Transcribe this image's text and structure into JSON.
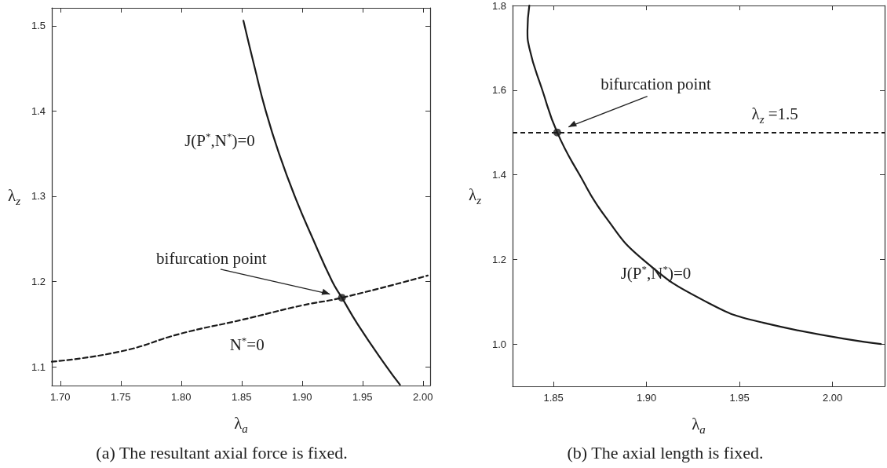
{
  "chart_data": [
    {
      "type": "line",
      "title": "(a) The resultant axial force is fixed.",
      "xlabel": "λ$_{a}$",
      "ylabel": "λ$_{z}$",
      "xlim": [
        1.693,
        2.006
      ],
      "ylim": [
        1.078,
        1.521
      ],
      "xticks": [
        {
          "value": 1.7,
          "label": "1.70"
        },
        1.75,
        {
          "value": 1.8,
          "label": "1.80"
        },
        1.85,
        {
          "value": 1.9,
          "label": "1.90"
        },
        1.95,
        {
          "value": 2,
          "label": "2.00"
        }
      ],
      "yticks": [
        1.1,
        1.2,
        1.3,
        1.4,
        1.5
      ],
      "grid": false,
      "series": [
        {
          "color": "#1a1a1a",
          "line_style": "solid",
          "x": [
            1.8515,
            1.861,
            1.87,
            1.881,
            1.894,
            1.909,
            1.925,
            1.933,
            1.946,
            1.97,
            1.981
          ],
          "values": [
            1.506,
            1.45,
            1.4,
            1.35,
            1.3,
            1.25,
            1.2,
            1.181,
            1.15,
            1.1,
            1.079
          ]
        },
        {
          "color": "#1a1a1a",
          "line_style": "dashed",
          "x": [
            1.693,
            1.75,
            1.8,
            1.85,
            1.9,
            1.933,
            2.004
          ],
          "values": [
            1.106,
            1.118,
            1.139,
            1.155,
            1.172,
            1.181,
            1.207
          ]
        },
        {
          "type": "scatter",
          "marker": "circle",
          "color": "#1a1a1a",
          "x": [
            1.933
          ],
          "values": [
            1.181
          ]
        }
      ],
      "annotations": [
        "bifurcation point",
        "J(P$^{*}$,N$^{*}$)=0",
        "N$^{*}$=0"
      ]
    },
    {
      "type": "line",
      "title": "(b) The axial length is fixed.",
      "xlabel": "λ$_{a}$",
      "ylabel": "λ$_{z}$",
      "xlim": [
        1.828,
        2.028
      ],
      "ylim": [
        0.9,
        1.8
      ],
      "xticks": [
        1.85,
        {
          "value": 1.9,
          "label": "1.90"
        },
        1.95,
        {
          "value": 2,
          "label": "2.00"
        }
      ],
      "yticks": [
        {
          "value": 1,
          "label": "1.0"
        },
        1.2,
        1.4,
        1.6,
        1.8
      ],
      "grid": false,
      "series": [
        {
          "color": "#1a1a1a",
          "line_style": "solid",
          "x": [
            1.837,
            1.836,
            1.837,
            1.844,
            1.852,
            1.864,
            1.878,
            1.898,
            1.932,
            1.963,
            2.026
          ],
          "values": [
            1.8,
            1.74,
            1.7,
            1.6,
            1.5,
            1.4,
            1.3,
            1.2,
            1.1,
            1.05,
            1.0
          ]
        },
        {
          "type": "scatter",
          "marker": "circle",
          "color": "#1a1a1a",
          "x": [
            1.852
          ],
          "values": [
            1.5
          ]
        }
      ],
      "ref_lines": [
        {
          "axis": "y",
          "value": 1.5,
          "label": "λ$_{z}$ =1.5",
          "line_style": "dashed",
          "color": "#1a1a1a"
        }
      ],
      "annotations": [
        "bifurcation point",
        "J(P$^{*}$,N$^{*}$)=0"
      ]
    }
  ]
}
